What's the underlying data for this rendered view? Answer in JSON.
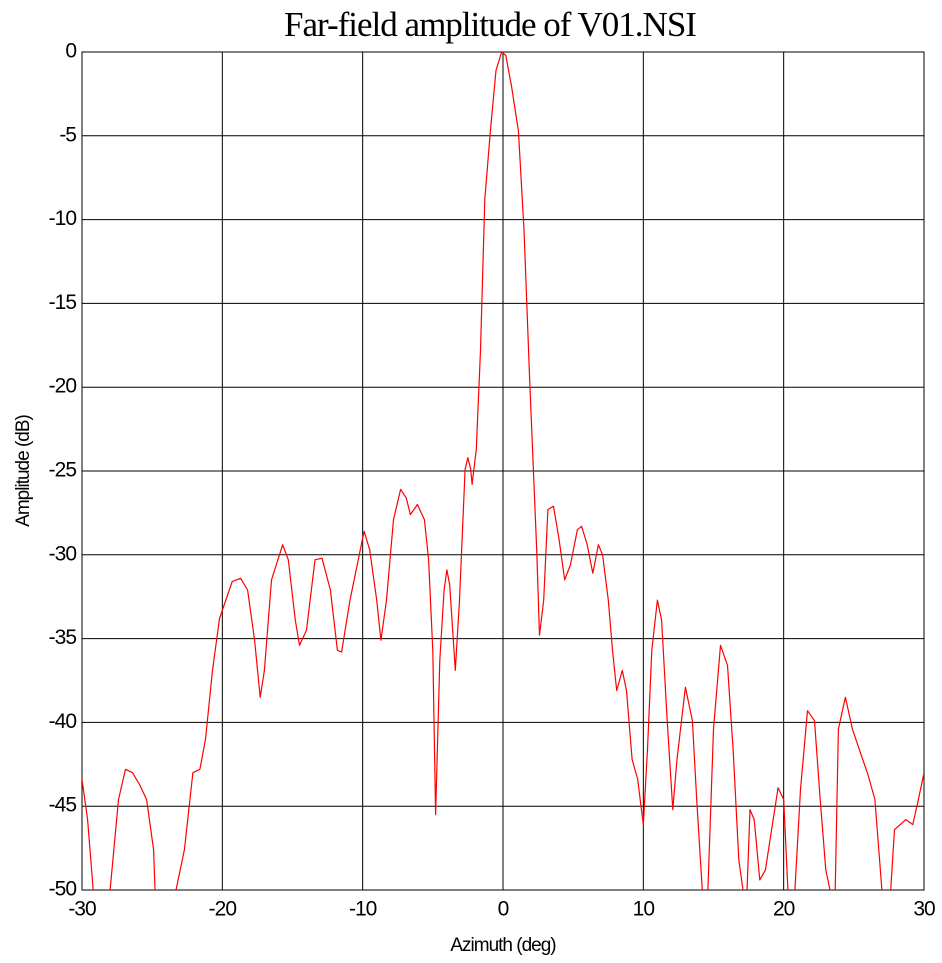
{
  "chart_data": {
    "type": "line",
    "title": "Far-field amplitude of V01.NSI",
    "x_label": "Azimuth (deg)",
    "y_label": "Amplitude (dB)",
    "xlim": [
      -30,
      30
    ],
    "xticks": [
      -30,
      -20,
      -10,
      0,
      10,
      20,
      30
    ],
    "ylim": [
      -50,
      0
    ],
    "yticks": [
      -50,
      -45,
      -40,
      -35,
      -30,
      -25,
      -20,
      -15,
      -10,
      -5,
      0
    ],
    "grid": true,
    "x": [
      -30,
      -29.6,
      -29.2,
      -28.6,
      -28.0,
      -27.4,
      -26.9,
      -26.4,
      -25.9,
      -25.4,
      -24.9,
      -24.8,
      -24.0,
      -23.3,
      -22.7,
      -22.1,
      -21.6,
      -21.2,
      -20.7,
      -20.2,
      -19.3,
      -18.7,
      -18.2,
      -17.7,
      -17.3,
      -17.0,
      -16.5,
      -15.7,
      -15.3,
      -14.8,
      -14.5,
      -14.0,
      -13.4,
      -12.9,
      -12.3,
      -11.8,
      -11.5,
      -10.9,
      -9.9,
      -9.5,
      -9.0,
      -8.7,
      -8.3,
      -7.8,
      -7.3,
      -6.9,
      -6.6,
      -6.1,
      -5.6,
      -5.3,
      -5.0,
      -4.8,
      -4.5,
      -4.2,
      -4.0,
      -3.8,
      -3.4,
      -3.1,
      -2.7,
      -2.5,
      -2.3,
      -2.2,
      -1.9,
      -1.6,
      -1.3,
      -0.9,
      -0.5,
      -0.1,
      0.2,
      0.6,
      1.1,
      1.5,
      1.9,
      2.4,
      2.6,
      2.9,
      3.2,
      3.6,
      4.0,
      4.4,
      4.8,
      5.3,
      5.6,
      6.0,
      6.4,
      6.8,
      7.1,
      7.5,
      7.8,
      8.1,
      8.5,
      8.8,
      9.2,
      9.6,
      10.0,
      10.3,
      10.6,
      11.0,
      11.3,
      11.7,
      12.1,
      12.4,
      13.0,
      13.5,
      13.8,
      14.2,
      14.4,
      14.6,
      15.0,
      15.5,
      16.0,
      16.4,
      16.8,
      17.1,
      17.3,
      17.6,
      17.9,
      18.3,
      18.7,
      19.2,
      19.6,
      20.0,
      20.3,
      20.6,
      21.2,
      21.7,
      22.2,
      22.6,
      23.0,
      23.3,
      23.6,
      23.9,
      24.4,
      24.9,
      25.5,
      26.0,
      26.5,
      27.0,
      27.4,
      27.9,
      28.7,
      29.2,
      29.6,
      30
    ],
    "series": [
      {
        "name": "V01.NSI",
        "color": "#ff0000",
        "values": [
          -43.4,
          -45.8,
          -50,
          -53,
          -50,
          -44.6,
          -42.8,
          -43,
          -43.7,
          -44.6,
          -47.6,
          -50,
          -53,
          -50,
          -47.6,
          -43,
          -42.8,
          -41,
          -36.9,
          -33.8,
          -31.6,
          -31.4,
          -32.1,
          -35.1,
          -38.5,
          -36.9,
          -31.5,
          -29.4,
          -30.3,
          -33.9,
          -35.4,
          -34.5,
          -30.3,
          -30.2,
          -32.1,
          -35.7,
          -35.8,
          -32.7,
          -28.6,
          -29.7,
          -32.7,
          -35.1,
          -32.7,
          -27.9,
          -26.1,
          -26.6,
          -27.6,
          -27.0,
          -27.9,
          -30.3,
          -35.7,
          -45.5,
          -36.3,
          -32.1,
          -30.9,
          -31.8,
          -36.9,
          -32.7,
          -24.9,
          -24.2,
          -24.9,
          -25.8,
          -23.7,
          -17.8,
          -8.8,
          -4.7,
          -1.1,
          0,
          -0.2,
          -2.0,
          -4.7,
          -10.6,
          -19.6,
          -29.7,
          -34.8,
          -32.7,
          -27.3,
          -27.1,
          -29.1,
          -31.5,
          -30.6,
          -28.5,
          -28.3,
          -29.4,
          -31.1,
          -29.4,
          -30.0,
          -32.7,
          -35.7,
          -38.1,
          -36.9,
          -38.1,
          -42.2,
          -43.4,
          -46.1,
          -41.6,
          -35.7,
          -32.7,
          -33.9,
          -39.9,
          -45.2,
          -42.2,
          -37.9,
          -39.9,
          -44.6,
          -50,
          -53,
          -50,
          -40.4,
          -35.4,
          -36.6,
          -41.6,
          -48.2,
          -50,
          -52,
          -45.2,
          -45.8,
          -49.4,
          -48.8,
          -46.1,
          -43.9,
          -44.6,
          -50,
          -53,
          -44.0,
          -39.3,
          -39.9,
          -44.6,
          -48.8,
          -50,
          -53,
          -40.4,
          -38.5,
          -40.4,
          -41.9,
          -43.1,
          -44.6,
          -50,
          -53,
          -46.4,
          -45.8,
          -46.1,
          -44.6,
          -43
        ]
      }
    ]
  }
}
